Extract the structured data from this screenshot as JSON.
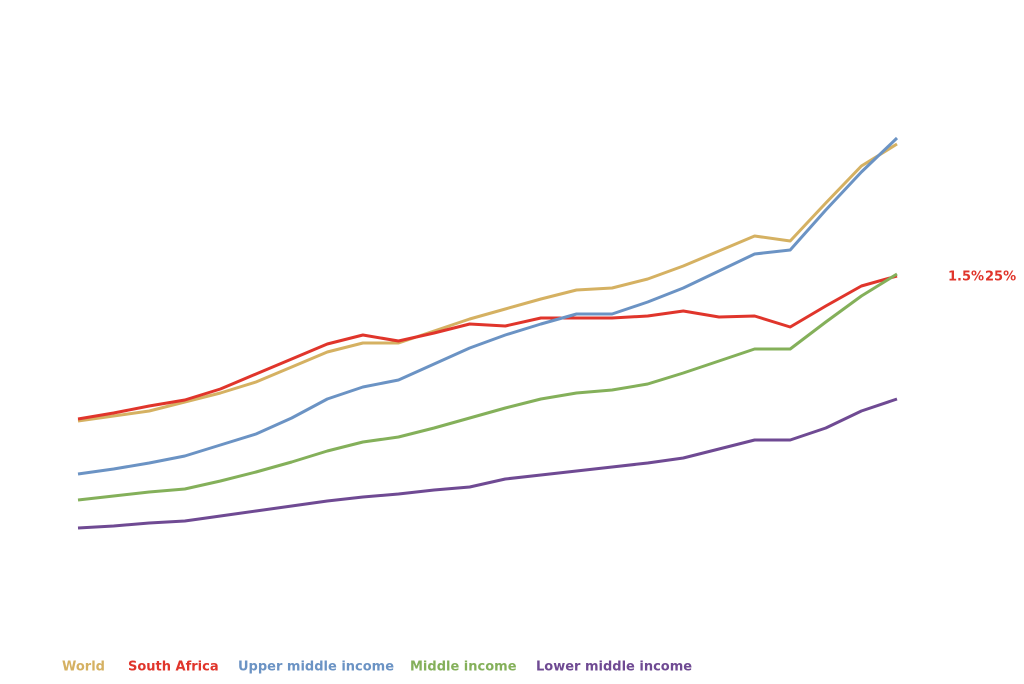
{
  "chart_data": {
    "type": "line",
    "categories": [
      null,
      null,
      null,
      null,
      null,
      null,
      null,
      null,
      null,
      null,
      null,
      null,
      null,
      null,
      null,
      null,
      null,
      null,
      null,
      null,
      null,
      null,
      null,
      null
    ],
    "ylim": [
      0,
      100
    ],
    "series": [
      {
        "name": "World",
        "color": "#d5b162",
        "values": [
          35.8,
          36.8,
          37.8,
          39.6,
          41.4,
          43.6,
          46.6,
          49.6,
          51.4,
          51.4,
          53.8,
          56.2,
          58.2,
          60.2,
          62,
          62.4,
          64.2,
          66.8,
          69.8,
          72.8,
          71.8,
          79.4,
          86.8,
          91.2
        ]
      },
      {
        "name": "South Africa",
        "color": "#e0352b",
        "values": [
          36.2,
          37.4,
          38.8,
          40,
          42.2,
          45.2,
          48.2,
          51.2,
          53,
          51.8,
          53.4,
          55.2,
          54.8,
          56.4,
          56.4,
          56.4,
          56.8,
          57.8,
          56.6,
          56.8,
          54.6,
          58.8,
          62.8,
          64.8
        ]
      },
      {
        "name": "Upper middle income",
        "color": "#6b93c4",
        "values": [
          25.2,
          26.2,
          27.4,
          28.8,
          31,
          33.2,
          36.4,
          40.2,
          42.6,
          44,
          47.2,
          50.4,
          53,
          55.2,
          57.2,
          57.2,
          59.6,
          62.4,
          65.8,
          69.2,
          70,
          78,
          85.6,
          92.4
        ]
      },
      {
        "name": "Middle income",
        "color": "#84b05a",
        "values": [
          20,
          20.8,
          21.6,
          22.2,
          23.8,
          25.6,
          27.6,
          29.8,
          31.6,
          32.6,
          34.4,
          36.4,
          38.4,
          40.2,
          41.4,
          42,
          43.2,
          45.4,
          47.8,
          50.2,
          50.2,
          55.6,
          60.8,
          65.2
        ]
      },
      {
        "name": "Lower middle income",
        "color": "#6f4a93",
        "values": [
          14.4,
          14.8,
          15.4,
          15.8,
          16.8,
          17.8,
          18.8,
          19.8,
          20.6,
          21.2,
          22,
          22.6,
          24.2,
          25,
          25.8,
          26.6,
          27.4,
          28.4,
          30.2,
          32,
          32,
          34.4,
          37.8,
          40.2
        ]
      }
    ],
    "annotations": [
      "1.5%",
      "25%"
    ],
    "annotation_color": "#e0352b"
  }
}
